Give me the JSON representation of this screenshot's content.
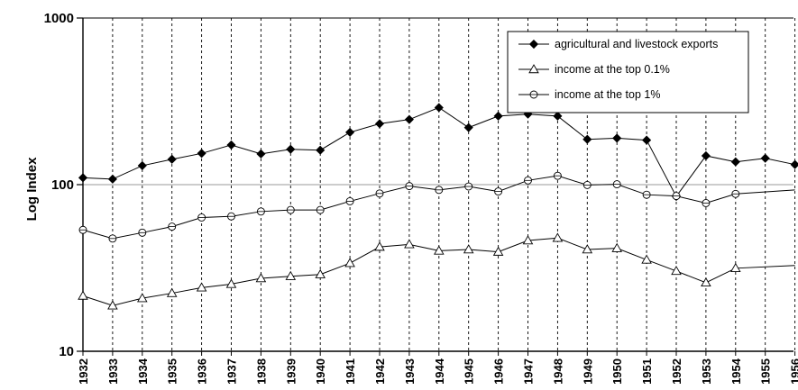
{
  "chart_data": {
    "type": "line",
    "title": "",
    "xlabel": "",
    "ylabel": "Log Index",
    "yscale": "log",
    "ylim": [
      10,
      1000
    ],
    "yticks": [
      "10",
      "100",
      "1000"
    ],
    "grid": "vertical dashed lines at each year; horizontal line at 100",
    "legend_position": "top-right",
    "categories": [
      "1932",
      "1933",
      "1934",
      "1935",
      "1936",
      "1937",
      "1938",
      "1939",
      "1940",
      "1941",
      "1942",
      "1943",
      "1944",
      "1945",
      "1946",
      "1947",
      "1948",
      "1949",
      "1950",
      "1951",
      "1952",
      "1953",
      "1954",
      "1955",
      "1956"
    ],
    "series": [
      {
        "name": "agricultural and livestock exports",
        "marker": "filled-diamond",
        "values": [
          110,
          108,
          130,
          142,
          154,
          173,
          153,
          163,
          161,
          206,
          232,
          246,
          290,
          220,
          258,
          265,
          258,
          187,
          190,
          185,
          85,
          149,
          137,
          144,
          132
        ]
      },
      {
        "name": "income at the top 0.1%",
        "marker": "open-triangle",
        "values": [
          21.5,
          18.8,
          20.8,
          22.3,
          24.1,
          25.3,
          27.4,
          28.2,
          28.9,
          33.8,
          42.3,
          43.8,
          40.1,
          40.8,
          39.5,
          46.2,
          47.8,
          40.8,
          41.5,
          35.4,
          30.3,
          25.8,
          31.5,
          null,
          32.7
        ]
      },
      {
        "name": "income at the top 1%",
        "marker": "open-circle",
        "values": [
          53.5,
          47.5,
          51.5,
          56,
          63.5,
          64.5,
          69,
          70.5,
          70.5,
          79.5,
          88.5,
          98,
          93,
          97.5,
          91,
          106,
          113,
          99.5,
          100.5,
          87,
          85.5,
          77.5,
          88,
          null,
          93
        ]
      }
    ]
  }
}
